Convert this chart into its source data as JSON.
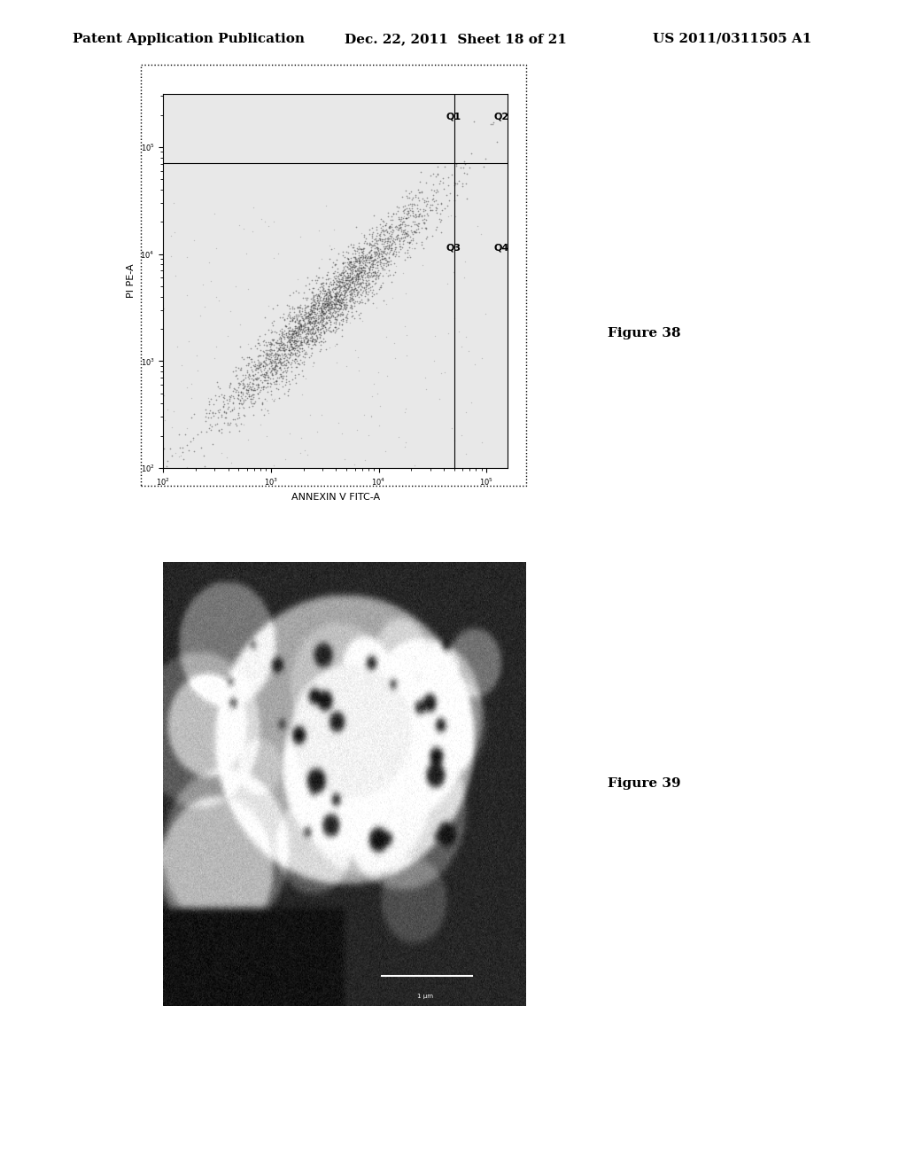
{
  "page_header_left": "Patent Application Publication",
  "page_header_mid": "Dec. 22, 2011  Sheet 18 of 21",
  "page_header_right": "US 2011/0311505 A1",
  "fig38_label": "Figure 38",
  "fig39_label": "Figure 39",
  "fig38_xlabel": "ANNEXIN V FITC-A",
  "fig38_ylabel": "PI PE-A",
  "fig38_yticks": [
    "10^2",
    "10^3",
    "10^4",
    "10^5"
  ],
  "fig38_xticks": [
    "10^2",
    "10^3",
    "10^4",
    "10^5"
  ],
  "fig38_quadrants": [
    "Q1",
    "Q2",
    "Q3",
    "Q4"
  ],
  "background_color": "#ffffff",
  "plot_bg_color": "#e8e8e8",
  "scatter_color": "#555555"
}
